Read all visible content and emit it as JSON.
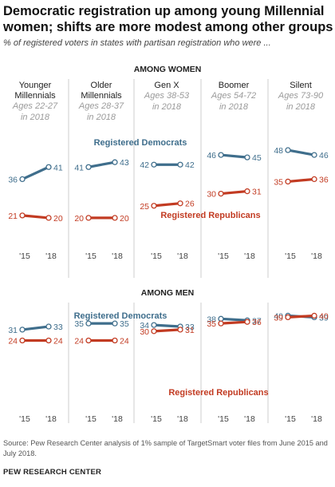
{
  "title": "Democratic registration up among young Millennial women; shifts are more modest among other groups",
  "subtitle": "% of registered voters in states with partisan registration who were ...",
  "source": "Source: Pew Research Center analysis of 1% sample of TargetSmart voter files from June 2015 and July 2018.",
  "credit": "PEW RESEARCH CENTER",
  "colors": {
    "democrats": "#3f6e8c",
    "republicans": "#c23b22",
    "grid": "#cccccc",
    "ticks": "#444444"
  },
  "chart_data": {
    "type": "line",
    "x": [
      "'15",
      "'18"
    ],
    "generations": [
      {
        "name_lines": [
          "Younger",
          "Millennials"
        ],
        "ages_lines": [
          "Ages 22-27",
          "in 2018"
        ]
      },
      {
        "name_lines": [
          "Older",
          "Millennials"
        ],
        "ages_lines": [
          "Ages 28-37",
          "in 2018"
        ]
      },
      {
        "name_lines": [
          "Gen X"
        ],
        "ages_lines": [
          "Ages 38-53",
          "in 2018"
        ]
      },
      {
        "name_lines": [
          "Boomer"
        ],
        "ages_lines": [
          "Ages 54-72",
          "in 2018"
        ]
      },
      {
        "name_lines": [
          "Silent"
        ],
        "ages_lines": [
          "Ages 73-90",
          "in 2018"
        ]
      }
    ],
    "panels": [
      {
        "title": "AMONG WOMEN",
        "ylim": [
          17,
          49
        ],
        "series": [
          {
            "name": "Registered Democrats",
            "key": "democrats",
            "values": [
              [
                36,
                41
              ],
              [
                41,
                43
              ],
              [
                42,
                42
              ],
              [
                46,
                45
              ],
              [
                48,
                46
              ]
            ]
          },
          {
            "name": "Registered Republicans",
            "key": "republicans",
            "values": [
              [
                21,
                20
              ],
              [
                20,
                20
              ],
              [
                25,
                26
              ],
              [
                30,
                31
              ],
              [
                35,
                36
              ]
            ]
          }
        ]
      },
      {
        "title": "AMONG MEN",
        "ylim": [
          16,
          49
        ],
        "series": [
          {
            "name": "Registered Democrats",
            "key": "democrats",
            "values": [
              [
                31,
                33
              ],
              [
                35,
                35
              ],
              [
                34,
                33
              ],
              [
                38,
                37
              ],
              [
                40,
                39
              ]
            ]
          },
          {
            "name": "Registered Republicans",
            "key": "republicans",
            "values": [
              [
                24,
                24
              ],
              [
                24,
                24
              ],
              [
                30,
                31
              ],
              [
                35,
                36
              ],
              [
                39,
                40
              ]
            ]
          }
        ]
      }
    ]
  }
}
